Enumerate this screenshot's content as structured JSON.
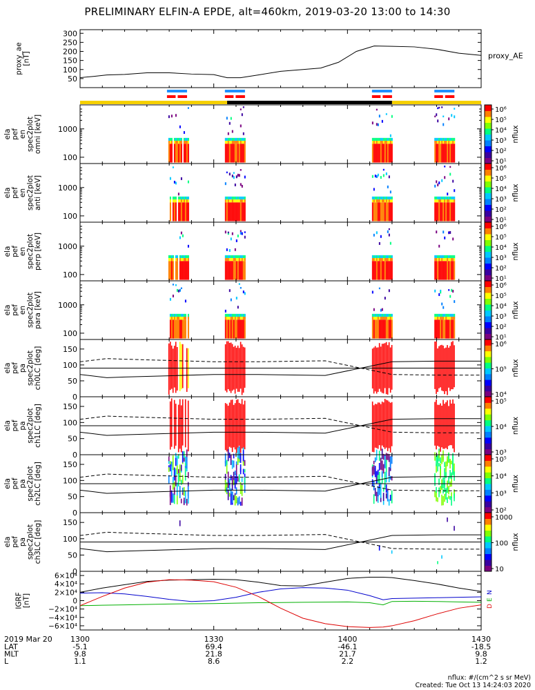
{
  "title": "PRELIMINARY ELFIN-A EPDE, alt=460km, 2019-03-20 13:00 to 14:30",
  "footer": {
    "units": "nflux: #/(cm^2 s sr MeV)",
    "created": "Created: Tue Oct 13 14:24:03 2020"
  },
  "colors": {
    "ae_line": "#000000",
    "bar_blue": "#1e90ff",
    "bar_red": "#ff0000",
    "bar_yellow": "#f5d000",
    "bar_black": "#000000",
    "igrf_black": "#000000",
    "igrf_blue": "#0000cc",
    "igrf_green": "#00b000",
    "igrf_red": "#dd0000"
  },
  "orbit_bar": {
    "segments": [
      {
        "state": "yellow",
        "start_min": 0,
        "end_min": 33
      },
      {
        "state": "black",
        "start_min": 33,
        "end_min": 70
      },
      {
        "state": "yellow",
        "start_min": 70,
        "end_min": 90
      }
    ],
    "science_zones": [
      {
        "start_min": 19.5,
        "end_min": 24.0
      },
      {
        "start_min": 32.5,
        "end_min": 37.0
      },
      {
        "start_min": 65.5,
        "end_min": 70.0
      },
      {
        "start_min": 79.5,
        "end_min": 84.0
      }
    ]
  },
  "x_axis": {
    "start_min": 0,
    "end_min": 90,
    "ticks": [
      {
        "min": 0,
        "label": "1300"
      },
      {
        "min": 30,
        "label": "1330"
      },
      {
        "min": 60,
        "label": "1400"
      },
      {
        "min": 90,
        "label": "1430"
      }
    ],
    "date_label": "2019 Mar 20",
    "rows": [
      {
        "name": "LAT",
        "values": [
          "-5.1",
          "69.4",
          "-46.1",
          "-18.5"
        ]
      },
      {
        "name": "MLT",
        "values": [
          "9.8",
          "21.8",
          "21.7",
          "9.8"
        ]
      },
      {
        "name": "L",
        "values": [
          "1.1",
          "8.6",
          "2.2",
          "1.2"
        ]
      }
    ]
  },
  "chart_data": [
    {
      "type": "line",
      "panel": "proxy_ae",
      "ylabel": "proxy_ae [nT]",
      "legend": "proxy_AE",
      "ylim": [
        0,
        320
      ],
      "yticks": [
        50,
        100,
        150,
        200,
        250,
        300
      ],
      "x": [
        0,
        3,
        6,
        10,
        15,
        20,
        25,
        30,
        33,
        36,
        40,
        45,
        50,
        54,
        58,
        62,
        66,
        70,
        75,
        80,
        85,
        90
      ],
      "values": [
        55,
        62,
        70,
        73,
        82,
        82,
        75,
        72,
        55,
        55,
        70,
        90,
        100,
        108,
        140,
        200,
        230,
        228,
        225,
        212,
        190,
        178
      ]
    },
    {
      "type": "heatmap",
      "panel": "en_spec_omni",
      "ylabel": "ela pef en spec2plot omni [keV]",
      "scale": "log",
      "ylim": [
        60,
        7000
      ],
      "yticks": [
        {
          "v": 100,
          "label": "100"
        },
        {
          "v": 1000,
          "label": "1000"
        }
      ],
      "colorbar": {
        "label": "nflux",
        "ticks": [
          "10¹",
          "10²",
          "10³",
          "10⁴",
          "10⁵",
          "10⁶"
        ]
      }
    },
    {
      "type": "heatmap",
      "panel": "en_spec_anti",
      "ylabel": "ela pef en spec2plot anti [keV]",
      "scale": "log",
      "ylim": [
        60,
        7000
      ],
      "yticks": [
        {
          "v": 100,
          "label": "100"
        },
        {
          "v": 1000,
          "label": "1000"
        }
      ],
      "colorbar": {
        "label": "nflux",
        "ticks": [
          "10¹",
          "10²",
          "10³",
          "10⁴",
          "10⁵",
          "10⁶"
        ]
      }
    },
    {
      "type": "heatmap",
      "panel": "en_spec_perp",
      "ylabel": "ela pef en spec2plot perp [keV]",
      "scale": "log",
      "ylim": [
        60,
        7000
      ],
      "yticks": [
        {
          "v": 100,
          "label": "100"
        },
        {
          "v": 1000,
          "label": "1000"
        }
      ],
      "colorbar": {
        "label": "nflux",
        "ticks": [
          "10¹",
          "10²",
          "10³",
          "10⁴",
          "10⁵",
          "10⁶"
        ]
      }
    },
    {
      "type": "heatmap",
      "panel": "en_spec_para",
      "ylabel": "ela pef en spec2plot para [keV]",
      "scale": "log",
      "ylim": [
        60,
        7000
      ],
      "yticks": [
        {
          "v": 100,
          "label": "100"
        },
        {
          "v": 1000,
          "label": "1000"
        }
      ],
      "colorbar": {
        "label": "nflux",
        "ticks": [
          "10¹",
          "10²",
          "10³",
          "10⁴",
          "10⁵",
          "10⁶"
        ]
      }
    },
    {
      "type": "heatmap",
      "panel": "pa_spec_ch0",
      "ylabel": "ela pef pa spec2plot ch0LC [deg]",
      "ylim": [
        0,
        180
      ],
      "yticks": [
        0,
        50,
        100,
        150
      ],
      "colorbar": {
        "label": "nflux",
        "ticks": [
          "10⁴",
          "10⁵",
          "10⁶"
        ]
      }
    },
    {
      "type": "heatmap",
      "panel": "pa_spec_ch1",
      "ylabel": "ela pef pa spec2plot ch1LC [deg]",
      "ylim": [
        0,
        180
      ],
      "yticks": [
        0,
        50,
        100,
        150
      ],
      "colorbar": {
        "label": "nflux",
        "ticks": [
          "10³",
          "10⁴",
          "10⁵"
        ]
      }
    },
    {
      "type": "heatmap",
      "panel": "pa_spec_ch2",
      "ylabel": "ela pef pa spec2plot ch2LC [deg]",
      "ylim": [
        0,
        180
      ],
      "yticks": [
        0,
        50,
        100,
        150
      ],
      "colorbar": {
        "label": "nflux",
        "ticks": [
          "10²",
          "10³",
          "10⁴",
          "10⁵"
        ]
      }
    },
    {
      "type": "heatmap",
      "panel": "pa_spec_ch3",
      "ylabel": "ela pef pa spec2plot ch3LC [deg]",
      "ylim": [
        0,
        180
      ],
      "yticks": [
        0,
        50,
        100,
        150
      ],
      "colorbar": {
        "label": "nflux",
        "ticks": [
          "10",
          "100",
          "1000"
        ]
      }
    },
    {
      "type": "line",
      "panel": "igrf",
      "ylabel": "IGRF [nT]",
      "ylim": [
        -70000,
        70000
      ],
      "yticks": [
        {
          "v": 60000,
          "label": "6×10⁴"
        },
        {
          "v": 40000,
          "label": "4×10⁴"
        },
        {
          "v": 20000,
          "label": "2×10⁴"
        },
        {
          "v": 0,
          "label": "0"
        },
        {
          "v": -20000,
          "label": "−2×10⁴"
        },
        {
          "v": -40000,
          "label": "−4×10⁴"
        },
        {
          "v": -60000,
          "label": "−6×10⁴"
        }
      ],
      "legend": [
        "N",
        "E",
        "D"
      ],
      "x": [
        0,
        5,
        10,
        15,
        20,
        25,
        30,
        35,
        40,
        45,
        50,
        55,
        60,
        65,
        68,
        70,
        75,
        80,
        85,
        90
      ],
      "series": [
        {
          "name": "total",
          "values": [
            20000,
            30000,
            38000,
            46000,
            49000,
            50000,
            51000,
            50000,
            44000,
            36000,
            35000,
            44000,
            53000,
            56000,
            56000,
            55000,
            48000,
            40000,
            30000,
            22000
          ]
        },
        {
          "name": "N",
          "values": [
            18000,
            19000,
            16000,
            10000,
            3000,
            -2000,
            0,
            8000,
            20000,
            28000,
            31000,
            30000,
            25000,
            12000,
            2000,
            5000,
            6000,
            7000,
            8000,
            9000
          ]
        },
        {
          "name": "E",
          "values": [
            -12000,
            -11000,
            -10000,
            -9000,
            -8000,
            -7500,
            -7000,
            -6000,
            -5000,
            -4500,
            -4000,
            -3500,
            -3000,
            -5000,
            -10000,
            -2000,
            -1500,
            -2000,
            -3000,
            -4000
          ]
        },
        {
          "name": "D",
          "values": [
            -12000,
            10000,
            30000,
            44000,
            50000,
            49000,
            45000,
            32000,
            10000,
            -18000,
            -42000,
            -55000,
            -62000,
            -64000,
            -63000,
            -60000,
            -48000,
            -32000,
            -18000,
            -10000
          ]
        }
      ]
    }
  ]
}
